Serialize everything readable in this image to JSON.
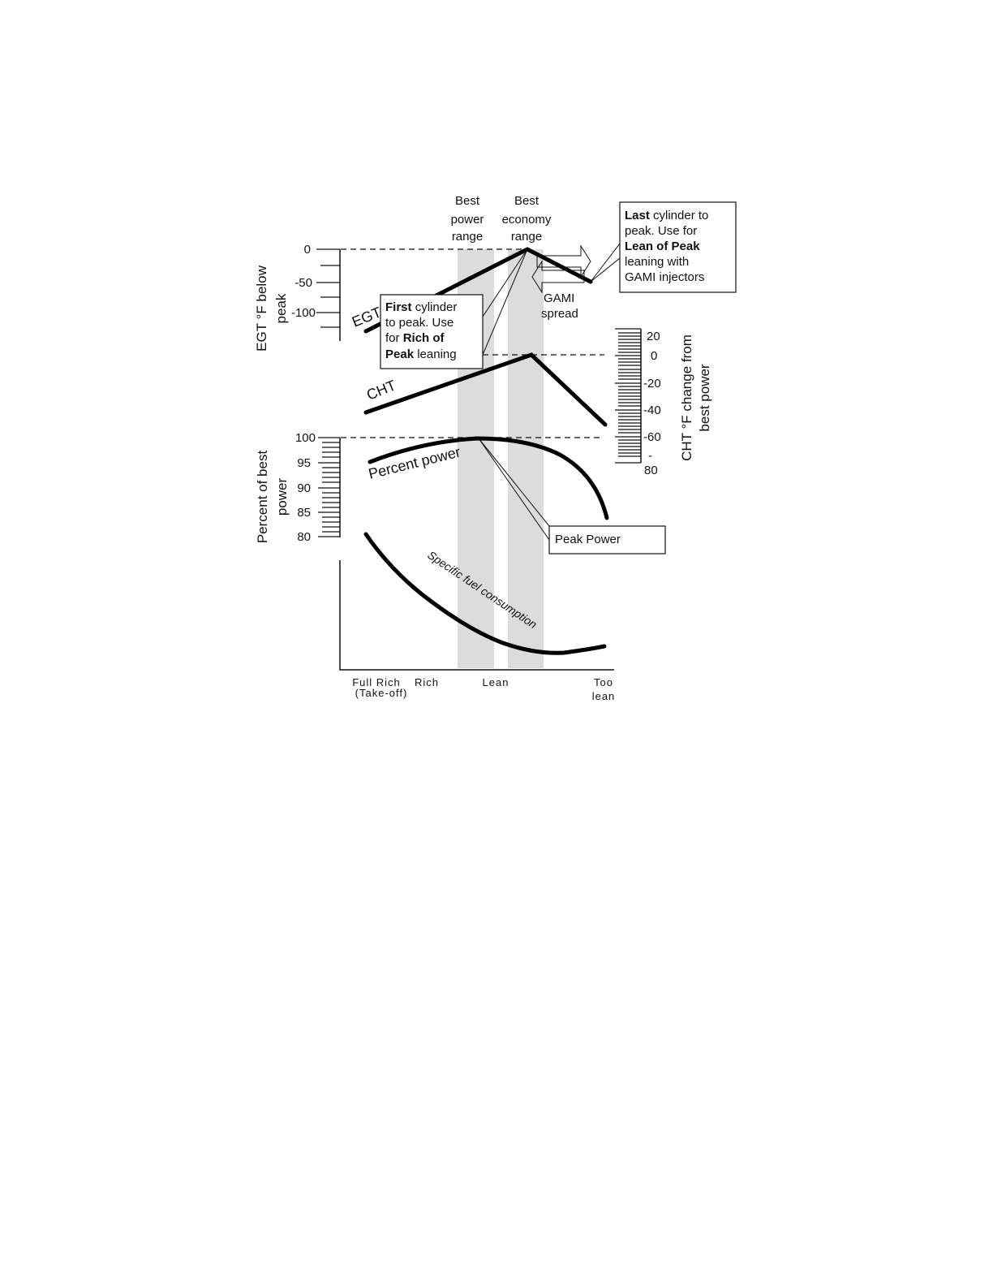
{
  "headers": {
    "best_power": [
      "Best",
      "power",
      "range"
    ],
    "best_economy": [
      "Best",
      "economy",
      "range"
    ]
  },
  "callouts": {
    "last_cylinder": [
      [
        "Last",
        "cylinder to"
      ],
      [
        "peak. Use for"
      ],
      [
        "Lean of Peak"
      ],
      [
        "leaning with"
      ],
      [
        "GAMI injectors"
      ]
    ],
    "first_cylinder": [
      [
        "First",
        "cylinder"
      ],
      [
        "to peak. Use"
      ],
      [
        "for",
        "Rich of"
      ],
      [
        "Peak",
        "leaning"
      ]
    ],
    "gami_spread": [
      "GAMI",
      "spread"
    ],
    "peak_power": "Peak Power"
  },
  "egt_axis": {
    "title": [
      "EGT °F below",
      "peak"
    ],
    "ticks": [
      "0",
      "-50",
      "-100"
    ]
  },
  "cht_axis": {
    "title": [
      "CHT °F change from",
      "best power"
    ],
    "ticks": [
      "20",
      "0",
      "-20",
      "-40",
      "-60",
      "-",
      "80"
    ]
  },
  "power_axis": {
    "title": [
      "Percent of best",
      "power"
    ],
    "ticks": [
      "100",
      "95",
      "90",
      "85",
      "80"
    ]
  },
  "curve_labels": {
    "egt": "EGT",
    "cht": "CHT",
    "power": "Percent power",
    "sfc": "Specific fuel consumption"
  },
  "mixture_axis": [
    [
      "Full Rich",
      "(Take-off)"
    ],
    [
      "Rich"
    ],
    [
      "Lean"
    ],
    [
      "Too",
      "lean"
    ]
  ]
}
